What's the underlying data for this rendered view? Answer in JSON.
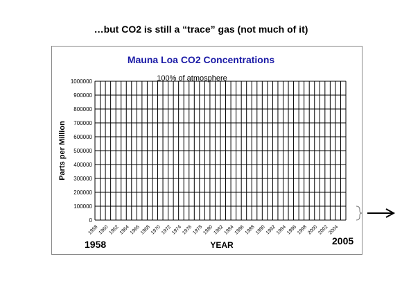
{
  "slide": {
    "title": "…but CO2 is still a “trace” gas (not much of it)",
    "start_year_label": "1958",
    "end_year_label": "2005"
  },
  "chart_data": {
    "type": "line",
    "title": "Mauna Loa CO2 Concentrations",
    "annotation": "100% of atmosphere",
    "xlabel": "YEAR",
    "ylabel": "Parts per Million",
    "ylim": [
      0,
      1000000
    ],
    "yticks": [
      0,
      100000,
      200000,
      300000,
      400000,
      500000,
      600000,
      700000,
      800000,
      900000,
      1000000
    ],
    "x_tick_labels": [
      "1958",
      "1960",
      "1962",
      "1964",
      "1966",
      "1968",
      "1970",
      "1972",
      "1974",
      "1976",
      "1978",
      "1980",
      "1982",
      "1984",
      "1986",
      "1988",
      "1990",
      "1992",
      "1994",
      "1996",
      "1998",
      "2000",
      "2002",
      "2004"
    ],
    "grid": true,
    "colors": {
      "title": "#1a1aa6",
      "grid": "#000000",
      "arrow": "#000000"
    }
  }
}
